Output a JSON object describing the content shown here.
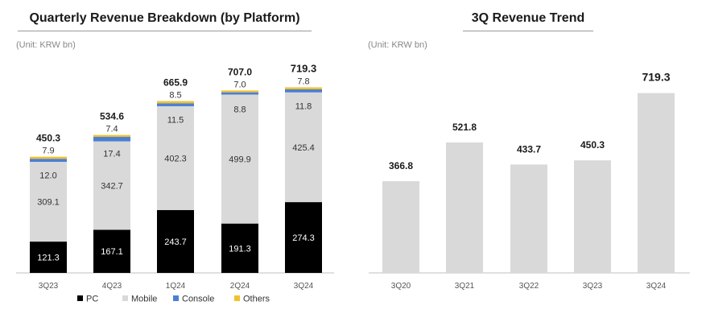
{
  "chart_data": [
    {
      "type": "bar",
      "stacked": true,
      "title": "Quarterly Revenue Breakdown (by Platform)",
      "unit": "(Unit: KRW bn)",
      "categories": [
        "3Q23",
        "4Q23",
        "1Q24",
        "2Q24",
        "3Q24"
      ],
      "series": [
        {
          "name": "PC",
          "color": "#000000",
          "values": [
            121.3,
            167.1,
            243.7,
            191.3,
            274.3
          ]
        },
        {
          "name": "Mobile",
          "color": "#d9d9d9",
          "values": [
            309.1,
            342.7,
            402.3,
            499.9,
            425.4
          ]
        },
        {
          "name": "Console",
          "color": "#4a7fd4",
          "values": [
            12.0,
            17.4,
            11.5,
            8.8,
            11.8
          ]
        },
        {
          "name": "Others",
          "color": "#f2c12e",
          "values": [
            7.9,
            7.4,
            8.5,
            7.0,
            7.8
          ]
        }
      ],
      "totals": [
        450.3,
        534.6,
        665.9,
        707.0,
        719.3
      ],
      "total_labels": [
        "450.3",
        "534.6",
        "665.9",
        "707.0",
        "719.3"
      ],
      "segment_labels": {
        "PC": [
          "121.3",
          "167.1",
          "243.7",
          "191.3",
          "274.3"
        ],
        "Mobile": [
          "309.1",
          "342.7",
          "402.3",
          "499.9",
          "425.4"
        ],
        "Console": [
          "12.0",
          "17.4",
          "11.5",
          "8.8",
          "11.8"
        ],
        "Others": [
          "7.9",
          "7.4",
          "8.5",
          "7.0",
          "7.8"
        ]
      },
      "legend": [
        "PC",
        "Mobile",
        "Console",
        "Others"
      ],
      "legend_position": "bottom",
      "ylim": [
        0,
        800
      ],
      "grid": false
    },
    {
      "type": "bar",
      "title": "3Q Revenue Trend",
      "unit": "(Unit: KRW bn)",
      "categories": [
        "3Q20",
        "3Q21",
        "3Q22",
        "3Q23",
        "3Q24"
      ],
      "values": [
        366.8,
        521.8,
        433.7,
        450.3,
        719.3
      ],
      "value_labels": [
        "366.8",
        "521.8",
        "433.7",
        "450.3",
        "719.3"
      ],
      "color": "#d9d9d9",
      "ylim": [
        0,
        800
      ],
      "grid": false
    }
  ]
}
